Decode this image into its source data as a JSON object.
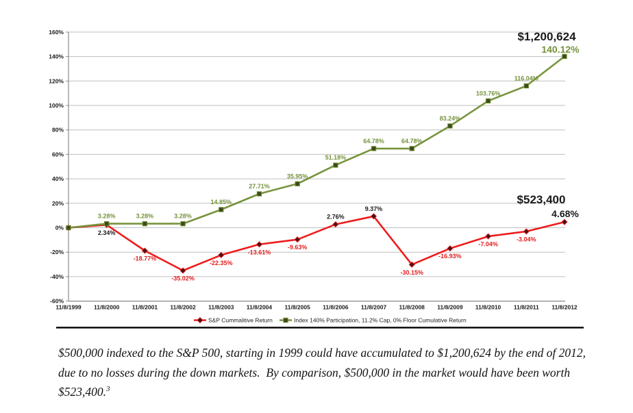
{
  "chart_data": {
    "type": "line",
    "title": "",
    "xlabel": "",
    "ylabel": "",
    "ylim": [
      -60,
      160
    ],
    "ytick_step": 20,
    "ytick_format": "percent",
    "grid": "horizontal",
    "legend_position": "bottom",
    "categories": [
      "11/8/1999",
      "11/8/2000",
      "11/8/2001",
      "11/8/2002",
      "11/8/2003",
      "11/8/2004",
      "11/8/2005",
      "11/8/2006",
      "11/8/2007",
      "11/8/2008",
      "11/8/2009",
      "11/8/2010",
      "11/8/2011",
      "11/8/2012"
    ],
    "series": [
      {
        "name": "S&P Cummalitive Return",
        "marker": "diamond",
        "line_color": "#EE1C1C",
        "marker_color": "#4A1215",
        "label_color_positive": "#1A1A1A",
        "label_color_negative": "#E21E1E",
        "values": [
          0,
          2.34,
          -18.77,
          -35.02,
          -22.35,
          -13.61,
          -9.63,
          2.76,
          9.37,
          -30.15,
          -16.93,
          -7.04,
          -3.04,
          4.68
        ],
        "point_labels": [
          "",
          "2.34%",
          "-18.77%",
          "-35.02%",
          "-22.35%",
          "-13.61%",
          "-9.63%",
          "2.76%",
          "9.37%",
          "-30.15%",
          "-16.93%",
          "-7.04%",
          "-3.04%",
          ""
        ]
      },
      {
        "name": "Index 140% Participation, 11.2% Cap, 0% Floor Cumulative Return",
        "marker": "square",
        "line_color": "#77933C",
        "marker_color": "#3D4A1B",
        "label_color_positive": "#76923C",
        "label_color_negative": "#76923C",
        "values": [
          0,
          3.28,
          3.28,
          3.28,
          14.85,
          27.71,
          35.95,
          51.18,
          64.78,
          64.78,
          83.24,
          103.76,
          116.04,
          140.12
        ],
        "point_labels": [
          "",
          "3.28%",
          "3.28%",
          "3.28%",
          "14.85%",
          "27.71%",
          "35.95%",
          "51.18%",
          "64.78%",
          "64.78%",
          "83.24%",
          "103.76%",
          "116.04%",
          ""
        ]
      }
    ],
    "annotations": [
      {
        "text": "$1,200,624",
        "color": "#1A1A1A",
        "size": 17
      },
      {
        "text": "140.12%",
        "color": "#76923C",
        "size": 14
      },
      {
        "text": "$523,400",
        "color": "#1A1A1A",
        "size": 17
      },
      {
        "text": "4.68%",
        "color": "#1A1A1A",
        "size": 14
      }
    ],
    "colors": {
      "gridline": "#BFBFBF",
      "axis": "#8C8C8C",
      "axis_text": "#1A1A1A",
      "legend_text": "#222222",
      "bottom_rule": "#151515"
    }
  },
  "caption": {
    "lines": [
      "$500,000 indexed to the S&P 500, starting in 1999 could have accumulated to $1,200,624 by the end of 2012,",
      "due to no losses during the down markets.  By comparison, $500,000 in the market would have been worth",
      "$523,400."
    ],
    "footnote_marker": "3"
  }
}
